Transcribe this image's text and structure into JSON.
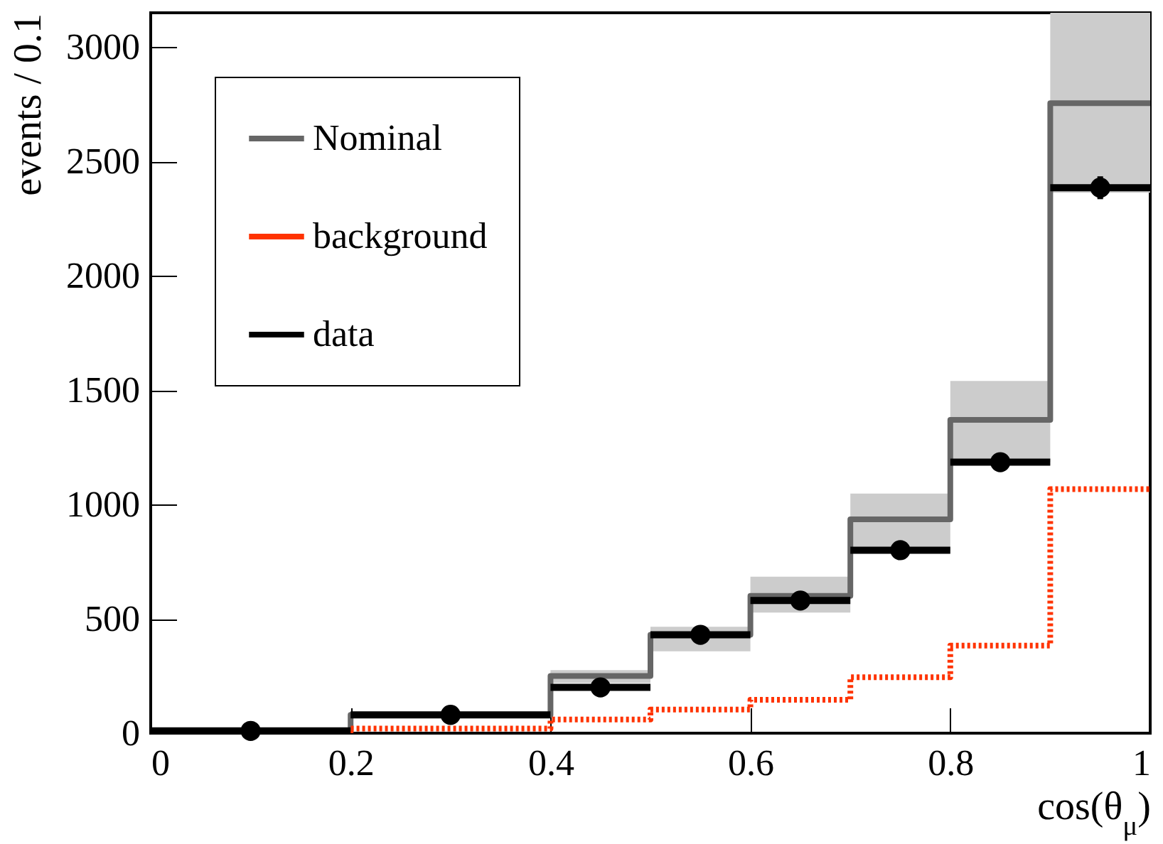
{
  "chart_data": {
    "type": "step",
    "xlabel": "cos(θ$_{μ}$)",
    "ylabel": "events / 0.1",
    "series": [
      {
        "name": "Nominal",
        "color": "#666666",
        "x": [
          0,
          0.2,
          0.4,
          0.5,
          0.6,
          0.7,
          0.8,
          0.9,
          1
        ],
        "values": [
          10,
          80,
          250,
          430,
          600,
          935,
          1370,
          2755,
          2755
        ],
        "lower": [
          5,
          70,
          220,
          358,
          527,
          797,
          1186,
          2363,
          2363
        ],
        "upper": [
          15,
          90,
          276,
          465,
          684,
          1048,
          1540,
          3150,
          3150
        ]
      },
      {
        "name": "background",
        "color": "#ff3300",
        "line_style": "dotted",
        "x": [
          0,
          0.2,
          0.4,
          0.5,
          0.6,
          0.7,
          0.8,
          0.9,
          1
        ],
        "values": [
          0,
          20,
          60,
          103,
          146,
          245,
          383,
          1067,
          1067
        ]
      },
      {
        "name": "data",
        "type": "scatter",
        "color": "#000000",
        "marker": "circle",
        "x": [
          0.1,
          0.3,
          0.45,
          0.55,
          0.65,
          0.75,
          0.85,
          0.95
        ],
        "values": [
          10,
          80,
          200,
          430,
          580,
          800,
          1185,
          2385
        ],
        "xerrors": [
          0.1,
          0.1,
          0.05,
          0.05,
          0.05,
          0.05,
          0.05,
          0.05
        ],
        "errors": [
          null,
          null,
          null,
          null,
          null,
          null,
          null,
          50
        ]
      }
    ],
    "xlim": [
      0,
      1
    ],
    "xticks": [
      0,
      0.2,
      0.4,
      0.6,
      0.8,
      1
    ],
    "ylim": [
      0,
      3150
    ],
    "yticks": [
      0,
      500,
      1000,
      1500,
      2000,
      2500,
      3000
    ],
    "grid": false,
    "legend": "top left"
  }
}
